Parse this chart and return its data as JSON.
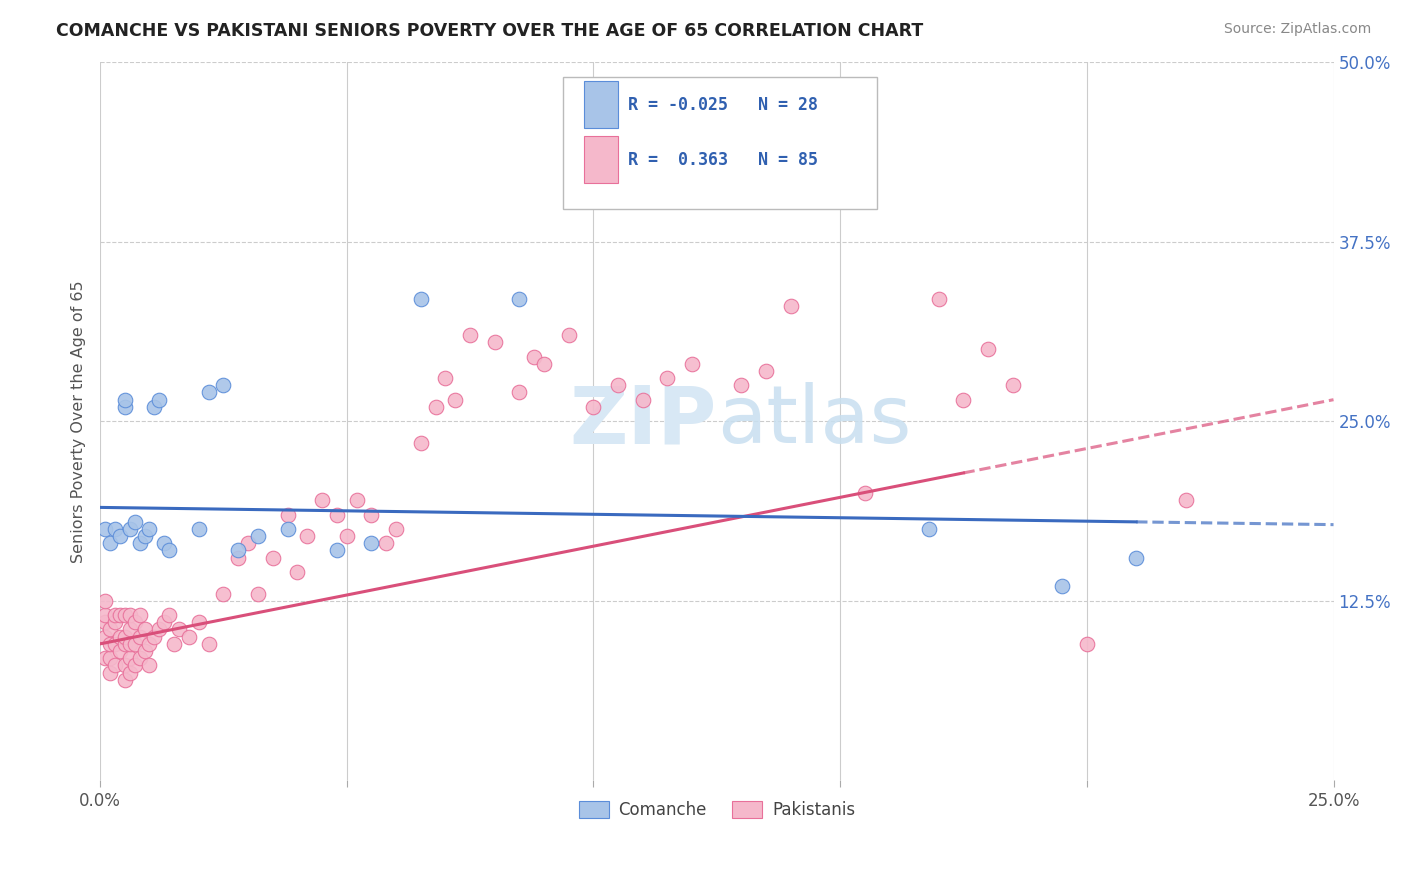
{
  "title": "COMANCHE VS PAKISTANI SENIORS POVERTY OVER THE AGE OF 65 CORRELATION CHART",
  "source": "Source: ZipAtlas.com",
  "ylabel": "Seniors Poverty Over the Age of 65",
  "xlim": [
    0.0,
    0.25
  ],
  "ylim": [
    0.0,
    0.5
  ],
  "xtick_vals": [
    0.0,
    0.05,
    0.1,
    0.15,
    0.2,
    0.25
  ],
  "xtick_labels": [
    "0.0%",
    "",
    "",
    "",
    "",
    "25.0%"
  ],
  "ytick_vals": [
    0.125,
    0.25,
    0.375,
    0.5
  ],
  "ytick_labels": [
    "12.5%",
    "25.0%",
    "37.5%",
    "50.0%"
  ],
  "comanche_R": -0.025,
  "comanche_N": 28,
  "pakistani_R": 0.363,
  "pakistani_N": 85,
  "comanche_color": "#a8c4e8",
  "comanche_edge": "#5b8dd9",
  "pakistani_color": "#f5b8cb",
  "pakistani_edge": "#e8709a",
  "trend_comanche_color": "#3a6abf",
  "trend_pakistani_color": "#d94f7a",
  "background_color": "#ffffff",
  "grid_color": "#cccccc",
  "watermark_color": "#d8e8f5",
  "comanche_x": [
    0.001,
    0.002,
    0.003,
    0.004,
    0.005,
    0.005,
    0.006,
    0.007,
    0.008,
    0.009,
    0.01,
    0.011,
    0.012,
    0.013,
    0.014,
    0.02,
    0.022,
    0.025,
    0.028,
    0.032,
    0.038,
    0.048,
    0.055,
    0.065,
    0.085,
    0.168,
    0.195,
    0.21
  ],
  "comanche_y": [
    0.175,
    0.165,
    0.175,
    0.17,
    0.26,
    0.265,
    0.175,
    0.18,
    0.165,
    0.17,
    0.175,
    0.26,
    0.265,
    0.165,
    0.16,
    0.175,
    0.27,
    0.275,
    0.16,
    0.17,
    0.175,
    0.16,
    0.165,
    0.335,
    0.335,
    0.175,
    0.135,
    0.155
  ],
  "pakistani_x": [
    0.001,
    0.001,
    0.001,
    0.001,
    0.001,
    0.002,
    0.002,
    0.002,
    0.002,
    0.003,
    0.003,
    0.003,
    0.003,
    0.004,
    0.004,
    0.004,
    0.005,
    0.005,
    0.005,
    0.005,
    0.005,
    0.006,
    0.006,
    0.006,
    0.006,
    0.006,
    0.007,
    0.007,
    0.007,
    0.008,
    0.008,
    0.008,
    0.009,
    0.009,
    0.01,
    0.01,
    0.011,
    0.012,
    0.013,
    0.014,
    0.015,
    0.016,
    0.018,
    0.02,
    0.022,
    0.025,
    0.028,
    0.03,
    0.032,
    0.035,
    0.038,
    0.04,
    0.042,
    0.045,
    0.048,
    0.05,
    0.052,
    0.055,
    0.058,
    0.06,
    0.065,
    0.068,
    0.07,
    0.072,
    0.075,
    0.08,
    0.085,
    0.088,
    0.09,
    0.095,
    0.1,
    0.105,
    0.11,
    0.115,
    0.12,
    0.13,
    0.135,
    0.14,
    0.155,
    0.17,
    0.175,
    0.18,
    0.185,
    0.2,
    0.22
  ],
  "pakistani_y": [
    0.085,
    0.1,
    0.11,
    0.115,
    0.125,
    0.075,
    0.085,
    0.095,
    0.105,
    0.08,
    0.095,
    0.11,
    0.115,
    0.09,
    0.1,
    0.115,
    0.07,
    0.08,
    0.095,
    0.1,
    0.115,
    0.075,
    0.085,
    0.095,
    0.105,
    0.115,
    0.08,
    0.095,
    0.11,
    0.085,
    0.1,
    0.115,
    0.09,
    0.105,
    0.08,
    0.095,
    0.1,
    0.105,
    0.11,
    0.115,
    0.095,
    0.105,
    0.1,
    0.11,
    0.095,
    0.13,
    0.155,
    0.165,
    0.13,
    0.155,
    0.185,
    0.145,
    0.17,
    0.195,
    0.185,
    0.17,
    0.195,
    0.185,
    0.165,
    0.175,
    0.235,
    0.26,
    0.28,
    0.265,
    0.31,
    0.305,
    0.27,
    0.295,
    0.29,
    0.31,
    0.26,
    0.275,
    0.265,
    0.28,
    0.29,
    0.275,
    0.285,
    0.33,
    0.2,
    0.335,
    0.265,
    0.3,
    0.275,
    0.095,
    0.195
  ],
  "trend_com_x0": 0.0,
  "trend_com_x1": 0.25,
  "trend_com_y0": 0.19,
  "trend_com_y1": 0.178,
  "trend_pak_x0": 0.0,
  "trend_pak_x1": 0.25,
  "trend_pak_y0": 0.095,
  "trend_pak_y1": 0.265,
  "trend_pak_solid_end": 0.175,
  "trend_com_solid_end": 0.21
}
